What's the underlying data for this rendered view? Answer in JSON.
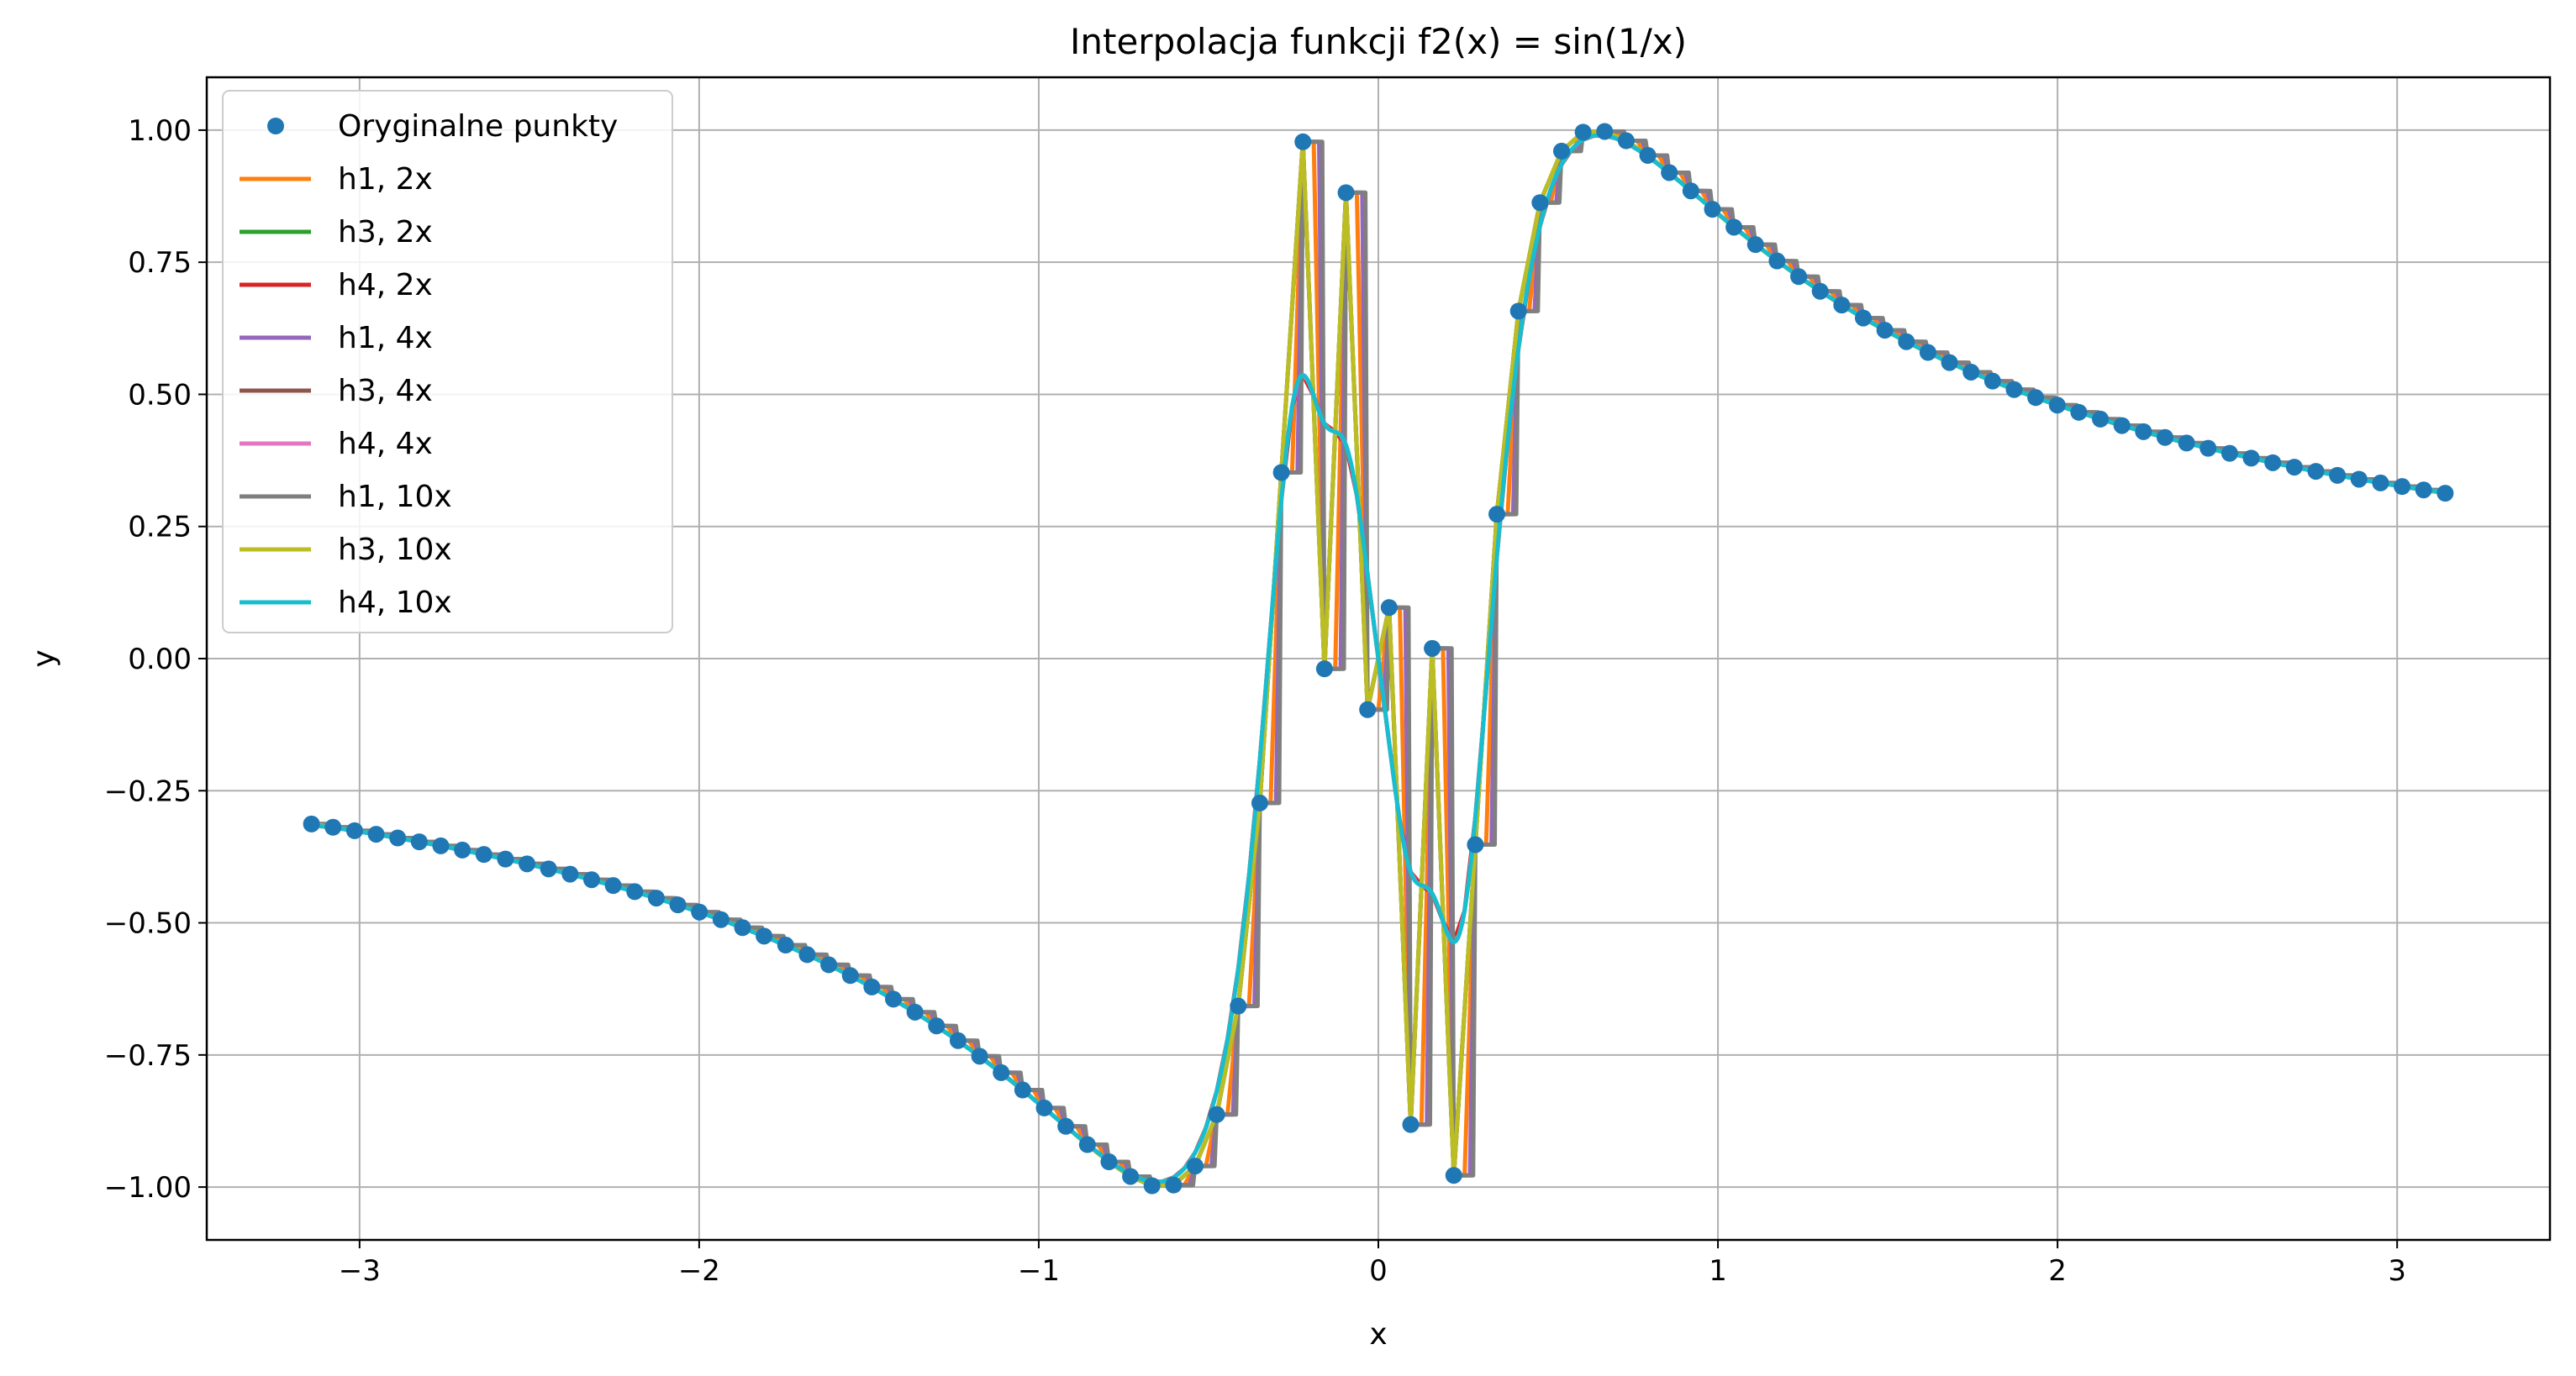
{
  "chart_data": {
    "type": "line",
    "title": "Interpolacja funkcji f2(x) = sin(1/x)",
    "xlabel": "x",
    "ylabel": "y",
    "xlim": [
      -3.45,
      3.45
    ],
    "ylim": [
      -1.1,
      1.1
    ],
    "xticks": [
      -3,
      -2,
      -1,
      0,
      1,
      2,
      3
    ],
    "xtick_labels": [
      "−3",
      "−2",
      "−1",
      "0",
      "1",
      "2",
      "3"
    ],
    "yticks": [
      -1.0,
      -0.75,
      -0.5,
      -0.25,
      0.0,
      0.25,
      0.5,
      0.75,
      1.0
    ],
    "ytick_labels": [
      "−1.00",
      "−0.75",
      "−0.50",
      "−0.25",
      "0.00",
      "0.25",
      "0.50",
      "0.75",
      "1.00"
    ],
    "grid": true,
    "legend_position": "top-left",
    "function": "sin(1/x)",
    "original_points": {
      "name": "Oryginalne punkty",
      "color": "#1f77b4",
      "marker": "circle",
      "x_start": -3.14159,
      "x_end": 3.14159,
      "count": 100
    },
    "series": [
      {
        "name": "h1, 2x",
        "color": "#ff7f0e",
        "method": "h1",
        "factor": 2
      },
      {
        "name": "h3, 2x",
        "color": "#2ca02c",
        "method": "h3",
        "factor": 2
      },
      {
        "name": "h4, 2x",
        "color": "#d62728",
        "method": "h4",
        "factor": 2
      },
      {
        "name": "h1, 4x",
        "color": "#9467bd",
        "method": "h1",
        "factor": 4
      },
      {
        "name": "h3, 4x",
        "color": "#8c564b",
        "method": "h3",
        "factor": 4
      },
      {
        "name": "h4, 4x",
        "color": "#e377c2",
        "method": "h4",
        "factor": 4
      },
      {
        "name": "h1, 10x",
        "color": "#7f7f7f",
        "method": "h1",
        "factor": 10
      },
      {
        "name": "h3, 10x",
        "color": "#bcbd22",
        "method": "h3",
        "factor": 10
      },
      {
        "name": "h4, 10x",
        "color": "#17becf",
        "method": "h4",
        "factor": 10
      }
    ]
  }
}
